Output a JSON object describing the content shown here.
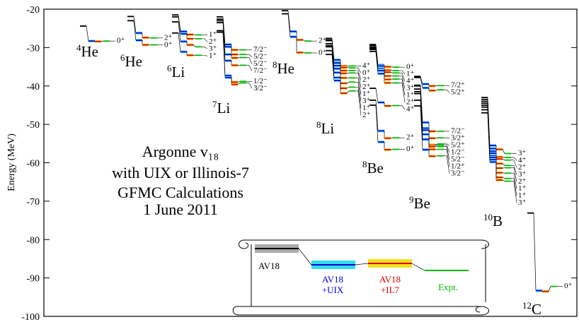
{
  "chart_data": {
    "type": "levels",
    "ylabel": "Energy (MeV)",
    "ylim": [
      -100,
      -20
    ],
    "yticks": [
      -100,
      -90,
      -80,
      -70,
      -60,
      -50,
      -40,
      -30,
      -20
    ],
    "title_lines": [
      "Argonne v₁₈",
      "with UIX or Illinois-7",
      "GFMC Calculations",
      "1 June 2011"
    ],
    "columns": [
      {
        "label": [
          "AV18"
        ],
        "color": "#000000"
      },
      {
        "label": [
          "AV18",
          "+UIX"
        ],
        "color": "#0000dd"
      },
      {
        "label": [
          "AV18",
          "+IL7"
        ],
        "color": "#dd0000"
      },
      {
        "label": [
          "Expt."
        ],
        "color": "#00bb00"
      }
    ],
    "nuclei": [
      {
        "mass": "4",
        "element": "He",
        "states": [
          {
            "label": "0⁺",
            "values": [
              -24.4,
              -28.3,
              -28.4,
              -28.3
            ]
          }
        ]
      },
      {
        "mass": "6",
        "element": "He",
        "states": [
          {
            "label": "2⁺",
            "values": [
              -21.9,
              -26.2,
              -27.4,
              -27.5
            ]
          },
          {
            "label": "0⁺",
            "values": [
              -23.0,
              -28.1,
              -29.3,
              -29.3
            ]
          }
        ]
      },
      {
        "mass": "6",
        "element": "Li",
        "states": [
          {
            "label": "1⁺",
            "values": [
              -21.5,
              -25.8,
              -26.6,
              -26.7
            ]
          },
          {
            "label": "2⁺",
            "values": [
              -22.0,
              -26.4,
              -27.7,
              -27.7
            ]
          },
          {
            "label": "3⁺",
            "values": [
              -23.3,
              -28.4,
              -29.3,
              -29.8
            ]
          },
          {
            "label": "1⁺",
            "values": [
              -26.2,
              -31.1,
              -32.0,
              -32.0
            ]
          }
        ]
      },
      {
        "mass": "7",
        "element": "Li",
        "states": [
          {
            "label": "7/2⁻",
            "values": [
              -22.0,
              -29.2,
              -30.6,
              -30.6
            ]
          },
          {
            "label": "5/2⁻",
            "values": [
              -22.6,
              -29.8,
              -31.8,
              -31.8
            ]
          },
          {
            "label": "5/2⁻",
            "values": [
              -23.0,
              -31.8,
              -32.7,
              -32.6
            ]
          },
          {
            "label": "7/2⁻",
            "values": [
              -23.5,
              -33.4,
              -34.6,
              -34.6
            ]
          },
          {
            "label": "1/2⁻",
            "values": [
              -25.6,
              -37.3,
              -39.0,
              -38.8
            ]
          },
          {
            "label": "3/2⁻",
            "values": [
              -26.0,
              -37.8,
              -39.6,
              -39.2
            ]
          }
        ]
      },
      {
        "mass": "8",
        "element": "He",
        "states": [
          {
            "label": "2⁺",
            "values": [
              -20.4,
              -25.8,
              -28.0,
              -28.3
            ]
          },
          {
            "label": "0⁺",
            "values": [
              -21.2,
              -27.2,
              -31.3,
              -31.4
            ]
          }
        ]
      },
      {
        "mass": "8",
        "element": "Li",
        "states": [
          {
            "label": "4⁺",
            "values": [
              -27.6,
              -33.8,
              -34.8,
              -34.8
            ]
          },
          {
            "label": "0⁺",
            "values": [
              -28.0,
              -33.2,
              -35.2,
              -35.3
            ]
          },
          {
            "label": "2⁺",
            "values": [
              -28.2,
              -34.7,
              -36.7,
              -36.6
            ]
          },
          {
            "label": "2⁺",
            "values": [
              -29.0,
              -34.0,
              -36.0,
              -36.0
            ]
          },
          {
            "label": "1⁺",
            "values": [
              -29.5,
              -35.5,
              -37.9,
              -37.9
            ]
          },
          {
            "label": "3⁺",
            "values": [
              -29.8,
              -36.5,
              -39.3,
              -39.0
            ]
          },
          {
            "label": "1⁺",
            "values": [
              -30.8,
              -37.8,
              -40.6,
              -40.3
            ]
          },
          {
            "label": "2⁺",
            "values": [
              -31.8,
              -38.6,
              -41.9,
              -41.3
            ]
          }
        ]
      },
      {
        "mass": "8",
        "element": "Be",
        "states": [
          {
            "label": "0⁺",
            "values": [
              -29.2,
              -34.5,
              -35.0,
              -35.1
            ]
          },
          {
            "label": "1⁺",
            "values": [
              -29.5,
              -34.8,
              -35.9,
              -36.0
            ]
          },
          {
            "label": "4⁺",
            "values": [
              -29.9,
              -35.5,
              -36.4,
              -36.6
            ]
          },
          {
            "label": "2⁺",
            "values": [
              -31.0,
              -36.8,
              -39.2,
              -39.2
            ]
          },
          {
            "label": "3⁺",
            "values": [
              -30.2,
              -35.9,
              -37.4,
              -37.4
            ]
          },
          {
            "label": "1⁺",
            "values": [
              -30.5,
              -36.0,
              -38.3,
              -38.2
            ]
          },
          {
            "label": "4⁺",
            "values": [
              -40.6,
              -44.3,
              -45.2,
              -45.1
            ]
          },
          {
            "label": "2⁺",
            "values": [
              -43.7,
              -51.7,
              -53.6,
              -53.5
            ]
          },
          {
            "label": "0⁺",
            "values": [
              -45.0,
              -54.6,
              -56.6,
              -56.5
            ]
          }
        ]
      },
      {
        "mass": "9",
        "element": "Be",
        "states": [
          {
            "label": "7/2⁺",
            "values": [
              -37.5,
              -39.5,
              -40.0,
              -39.9
            ]
          },
          {
            "label": "5/2⁺",
            "values": [
              -37.8,
              -40.5,
              -41.2,
              -41.0
            ]
          },
          {
            "label": "7/2⁻",
            "values": [
              -39.8,
              -49.5,
              -51.8,
              -51.8
            ]
          },
          {
            "label": "3/2⁺",
            "values": [
              -40.0,
              -51.0,
              -53.6,
              -53.5
            ]
          },
          {
            "label": "5/2⁺",
            "values": [
              -40.8,
              -51.5,
              -55.3,
              -55.1
            ]
          },
          {
            "label": "1/2⁻",
            "values": [
              -41.5,
              -52.6,
              -55.4,
              -55.4
            ]
          },
          {
            "label": "5/2⁻",
            "values": [
              -43.7,
              -54.0,
              -55.8,
              -55.8
            ]
          },
          {
            "label": "1/2⁺",
            "values": [
              -42.0,
              -53.9,
              -56.5,
              -56.5
            ]
          },
          {
            "label": "3/2⁻",
            "values": [
              -45.2,
              -56.6,
              -58.3,
              -58.2
            ]
          }
        ]
      },
      {
        "mass": "10",
        "element": "B",
        "states": [
          {
            "label": "3⁺",
            "values": [
              -43.0,
              -55.5,
              -56.5,
              -57.6
            ]
          },
          {
            "label": "4⁺",
            "values": [
              -43.5,
              -56.3,
              -58.5,
              -58.6
            ]
          },
          {
            "label": "2⁺",
            "values": [
              -44.0,
              -57.0,
              -59.0,
              -59.3
            ]
          },
          {
            "label": "3⁺",
            "values": [
              -44.5,
              -57.5,
              -60.2,
              -60.7
            ]
          },
          {
            "label": "2⁺",
            "values": [
              -45.0,
              -58.2,
              -61.4,
              -61.3
            ]
          },
          {
            "label": "1⁺",
            "values": [
              -45.5,
              -58.6,
              -62.6,
              -62.7
            ]
          },
          {
            "label": "1⁺",
            "values": [
              -46.2,
              -59.2,
              -63.8,
              -64.1
            ]
          },
          {
            "label": "3⁺",
            "values": [
              -47.0,
              -59.8,
              -64.5,
              -64.8
            ]
          }
        ]
      },
      {
        "mass": "12",
        "element": "C",
        "states": [
          {
            "label": "0⁺",
            "values": [
              -73.1,
              -93.3,
              -93.5,
              -92.2
            ]
          }
        ]
      }
    ]
  }
}
